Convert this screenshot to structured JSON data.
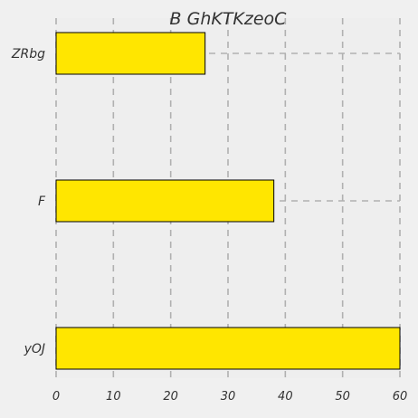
{
  "chart_data": {
    "type": "bar",
    "orientation": "horizontal",
    "title": "B GhKTKzeoC",
    "xlabel": "",
    "ylabel": "",
    "categories": [
      "ZRbg",
      "F",
      "yOJ"
    ],
    "values": [
      26,
      38,
      60
    ],
    "xlim": [
      0,
      60
    ],
    "xticks": [
      0,
      10,
      20,
      30,
      40,
      50,
      60
    ],
    "grid": true,
    "grid_style": "dashed",
    "bar_color": "#ffe600",
    "bar_edge_color": "#000000",
    "plot_background": "#eeeeee",
    "figure_background": "#f0f0f0",
    "grid_color": "#b0b0b0"
  }
}
